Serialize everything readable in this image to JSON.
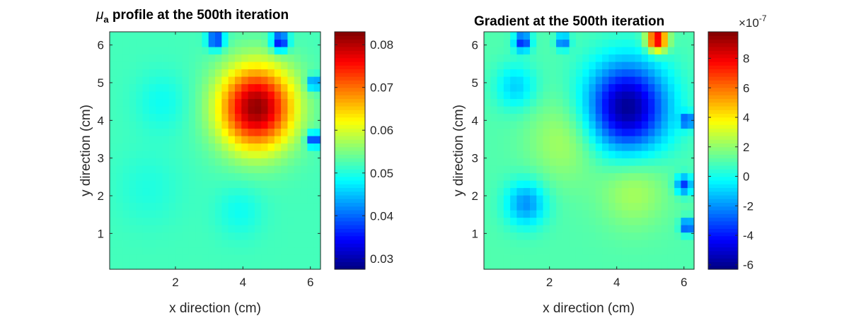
{
  "chart_data": [
    {
      "type": "heatmap",
      "title_symbol": "μ",
      "title_subscript": "a",
      "title": " profile at the 500th iteration",
      "xlabel": "x direction (cm)",
      "ylabel": "y direction (cm)",
      "xlim": [
        0.05,
        6.3
      ],
      "ylim": [
        0.05,
        6.35
      ],
      "xticks": [
        2,
        4,
        6
      ],
      "yticks": [
        1,
        2,
        3,
        4,
        5,
        6
      ],
      "colormap": "jet",
      "colorbar": {
        "clim": [
          0.0275,
          0.083
        ],
        "ticks": [
          "0.03",
          "0.04",
          "0.05",
          "0.06",
          "0.07",
          "0.08"
        ],
        "tick_values": [
          0.03,
          0.04,
          0.05,
          0.06,
          0.07,
          0.08
        ]
      },
      "grid_size": [
        32,
        32
      ],
      "background_value": 0.052,
      "features": [
        {
          "kind": "peak",
          "x": 4.4,
          "y": 4.35,
          "value": 0.082,
          "radius_cm": 1.1
        },
        {
          "kind": "low",
          "x": 1.6,
          "y": 4.5,
          "value": 0.049,
          "radius_cm": 0.8
        },
        {
          "kind": "low",
          "x": 1.2,
          "y": 2.2,
          "value": 0.05,
          "radius_cm": 1.0
        },
        {
          "kind": "low",
          "x": 3.9,
          "y": 1.6,
          "value": 0.049,
          "radius_cm": 0.7
        },
        {
          "kind": "edge-low",
          "x": 3.2,
          "y": 6.15,
          "value": 0.035,
          "radius_cm": 0.25
        },
        {
          "kind": "edge-low",
          "x": 5.1,
          "y": 6.1,
          "value": 0.032,
          "radius_cm": 0.25
        },
        {
          "kind": "edge-low",
          "x": 6.1,
          "y": 5.0,
          "value": 0.038,
          "radius_cm": 0.2
        },
        {
          "kind": "edge-low",
          "x": 6.1,
          "y": 3.5,
          "value": 0.034,
          "radius_cm": 0.2
        }
      ]
    },
    {
      "type": "heatmap",
      "title": "Gradient at the 500th iteration",
      "xlabel": "x direction (cm)",
      "ylabel": "y direction (cm)",
      "xlim": [
        0.05,
        6.3
      ],
      "ylim": [
        0.05,
        6.35
      ],
      "xticks": [
        2,
        4,
        6
      ],
      "yticks": [
        1,
        2,
        3,
        4,
        5,
        6
      ],
      "colormap": "jet",
      "colorbar": {
        "clim": [
          -6.3e-07,
          9.8e-07
        ],
        "multiplier": "×10",
        "exponent": "-7",
        "ticks": [
          "-6",
          "-4",
          "-2",
          "0",
          "2",
          "4",
          "6",
          "8"
        ],
        "tick_values": [
          -6e-07,
          -4e-07,
          -2e-07,
          0,
          2e-07,
          4e-07,
          6e-07,
          8e-07
        ]
      },
      "grid_size": [
        32,
        32
      ],
      "background_value": 1e-07,
      "features": [
        {
          "kind": "trough",
          "x": 4.3,
          "y": 4.35,
          "value": -6e-07,
          "radius_cm": 1.2
        },
        {
          "kind": "ridge",
          "x": 2.5,
          "y": 3.5,
          "value": 2.5e-07,
          "radius_cm": 1.1
        },
        {
          "kind": "ridge",
          "x": 4.5,
          "y": 2.2,
          "value": 2.5e-07,
          "radius_cm": 1.0
        },
        {
          "kind": "low",
          "x": 1.3,
          "y": 1.8,
          "value": -2e-07,
          "radius_cm": 0.6
        },
        {
          "kind": "low",
          "x": 1.0,
          "y": 4.9,
          "value": -1e-07,
          "radius_cm": 0.6
        },
        {
          "kind": "peak",
          "x": 5.2,
          "y": 6.15,
          "value": 9e-07,
          "radius_cm": 0.3
        },
        {
          "kind": "edge-low",
          "x": 1.2,
          "y": 6.1,
          "value": -4e-07,
          "radius_cm": 0.25
        },
        {
          "kind": "edge-low",
          "x": 2.4,
          "y": 6.1,
          "value": -3e-07,
          "radius_cm": 0.2
        },
        {
          "kind": "edge-low",
          "x": 6.1,
          "y": 4.0,
          "value": -3e-07,
          "radius_cm": 0.2
        },
        {
          "kind": "edge-low",
          "x": 6.0,
          "y": 2.3,
          "value": -3.5e-07,
          "radius_cm": 0.25
        },
        {
          "kind": "edge-low",
          "x": 6.1,
          "y": 1.2,
          "value": -4e-07,
          "radius_cm": 0.2
        }
      ]
    }
  ]
}
